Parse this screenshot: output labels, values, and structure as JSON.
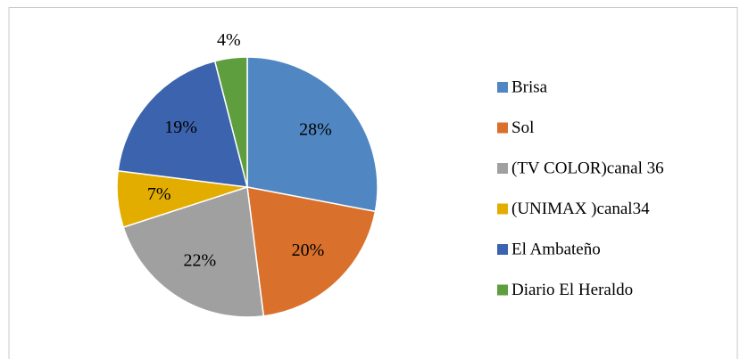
{
  "chart_data": {
    "type": "pie",
    "categories": [
      "Brisa",
      "Sol",
      "(TV COLOR)canal 36",
      "(UNIMAX )canal34",
      "El Ambateño",
      "Diario El Heraldo"
    ],
    "values": [
      28,
      20,
      22,
      7,
      19,
      4
    ],
    "value_labels": [
      "28%",
      "20%",
      "22%",
      "7%",
      "19%",
      "4%"
    ],
    "colors": [
      "#5086c1",
      "#d9702b",
      "#a0a0a0",
      "#e3ad00",
      "#3c63ad",
      "#5f9e3f"
    ],
    "legend": "right"
  }
}
